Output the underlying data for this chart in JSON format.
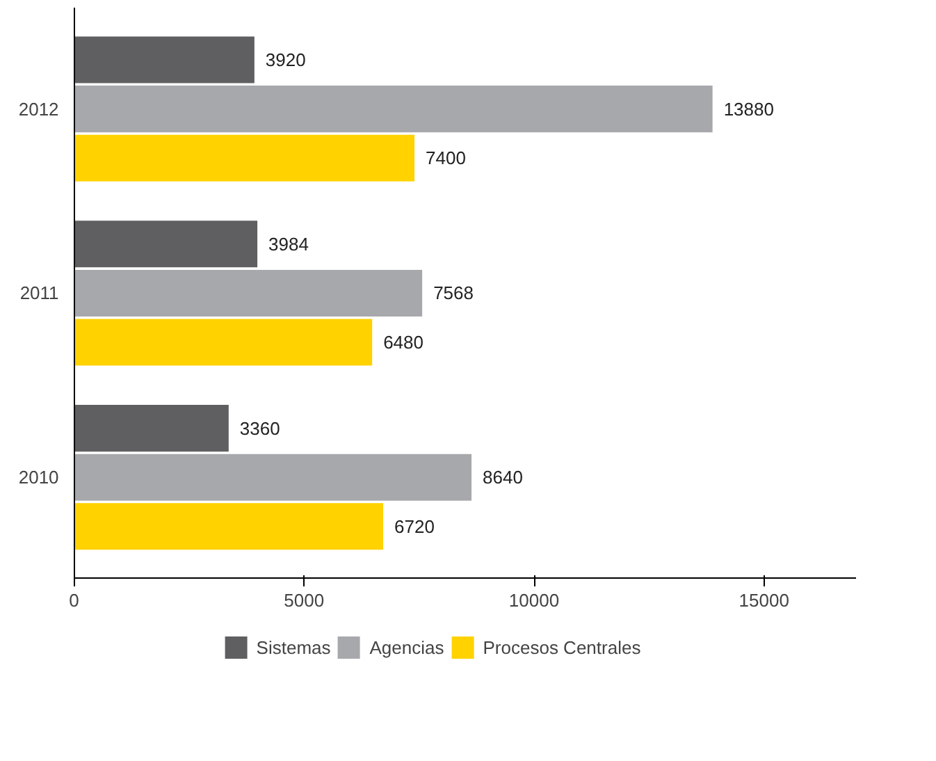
{
  "chart_data": {
    "type": "bar",
    "orientation": "horizontal",
    "categories": [
      "2012",
      "2011",
      "2010"
    ],
    "series": [
      {
        "name": "Sistemas",
        "color": "#5f5f61",
        "values": [
          3920,
          3984,
          3360
        ]
      },
      {
        "name": "Agencias",
        "color": "#a7a8ab",
        "values": [
          13880,
          7568,
          8640
        ]
      },
      {
        "name": "Procesos Centrales",
        "color": "#ffd200",
        "values": [
          7400,
          6480,
          6720
        ]
      }
    ],
    "xlim": [
      0,
      17000
    ],
    "xticks": [
      0,
      5000,
      10000,
      15000
    ],
    "data_labels": true,
    "grid": false,
    "legend": "bottom"
  }
}
